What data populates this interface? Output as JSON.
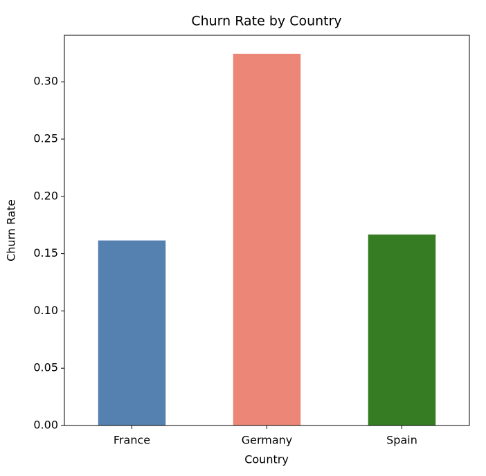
{
  "chart_data": {
    "type": "bar",
    "title": "Churn Rate by Country",
    "x_label": "Country",
    "y_label": "Churn Rate",
    "categories": [
      "France",
      "Germany",
      "Spain"
    ],
    "values": [
      0.1615,
      0.3244,
      0.1667
    ],
    "colors": [
      "#5581b0",
      "#ec8777",
      "#367c22"
    ],
    "ylim": [
      0,
      0.3406
    ],
    "yticks": [
      {
        "value": 0,
        "label": "0.00"
      },
      {
        "value": 0.05,
        "label": "0.05"
      },
      {
        "value": 0.1,
        "label": "0.10"
      },
      {
        "value": 0.15,
        "label": "0.15"
      },
      {
        "value": 0.2,
        "label": "0.20"
      },
      {
        "value": 0.25,
        "label": "0.25"
      },
      {
        "value": 0.3,
        "label": "0.30"
      }
    ],
    "grid": false
  }
}
